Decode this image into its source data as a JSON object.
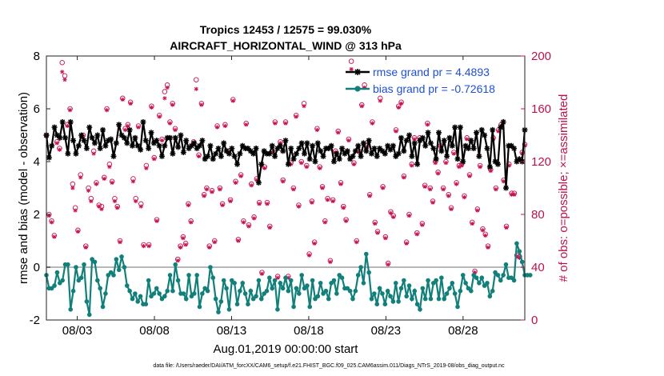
{
  "chart_data": {
    "type": "line",
    "title": "Tropics 12453 / 12575 = 99.030%",
    "subtitle": "AIRCRAFT_HORIZONTAL_WIND @ 313 hPa",
    "xlabel": "Aug.01,2019 00:00:00 start",
    "ylabel_left": "rmse and bias (model - observation)",
    "ylabel_right": "# of obs: o=possible; ×=assimilated",
    "footer": "data file: /Users/raeder/DAI/ATM_forcXX/CAM6_setup/f.e21.FHIST_BGC.f09_025.CAM6assim.011/Diags_NTrS_2019-08/obs_diag_output.nc",
    "x_ticks": [
      {
        "value": 3,
        "label": "08/03"
      },
      {
        "value": 8,
        "label": "08/08"
      },
      {
        "value": 13,
        "label": "08/13"
      },
      {
        "value": 18,
        "label": "08/18"
      },
      {
        "value": 23,
        "label": "08/23"
      },
      {
        "value": 28,
        "label": "08/28"
      }
    ],
    "y_left_ticks": [
      "-2",
      "0",
      "2",
      "4",
      "6",
      "8"
    ],
    "y_right_ticks": [
      "0",
      "40",
      "80",
      "120",
      "160",
      "200"
    ],
    "xlim": [
      1,
      32
    ],
    "ylim_left": [
      -2,
      8
    ],
    "ylim_right": [
      0,
      200
    ],
    "colors": {
      "rmse": "#000000",
      "bias": "#11807a",
      "obs": "#c8104e",
      "zero_line": "#b8b8b8",
      "legend_text": "#1f4fd6"
    },
    "series": [
      {
        "name": "rmse grand pr = 4.4893",
        "marker": "asterisk",
        "values": [
          5.0,
          4.15,
          4.6,
          5.3,
          5.0,
          4.9,
          5.5,
          4.9,
          4.3,
          5.5,
          4.8,
          4.3,
          4.6,
          5.0,
          4.8,
          4.5,
          5.3,
          4.9,
          4.7,
          5.0,
          4.5,
          5.2,
          4.6,
          4.8,
          4.85,
          4.2,
          4.7,
          5.4,
          5.0,
          4.9,
          4.7,
          5.2,
          4.6,
          4.9,
          4.6,
          4.45,
          5.5,
          4.8,
          4.5,
          5.1,
          4.7,
          4.8,
          4.6,
          4.2,
          4.6,
          4.9,
          4.9,
          4.3,
          4.9,
          4.55,
          5.0,
          4.35,
          4.8,
          4.5,
          4.6,
          4.7,
          4.5,
          4.6,
          4.8,
          4.1,
          4.2,
          4.6,
          4.1,
          4.3,
          4.5,
          4.2,
          4.7,
          4.4,
          4.3,
          4.5,
          4.2,
          3.9,
          4.3,
          4.6,
          4.5,
          4.5,
          4.4,
          4.3,
          4.5,
          3.2,
          3.9,
          4.4,
          4.3,
          4.3,
          4.6,
          4.2,
          4.5,
          4.6,
          4.4,
          4.8,
          3.9,
          4.5,
          4.1,
          4.3,
          4.5,
          4.7,
          4.3,
          4.7,
          4.1,
          4.6,
          4.0,
          4.7,
          4.4,
          4.2,
          4.5,
          4.5,
          4.6,
          4.0,
          4.3,
          4.1,
          4.5,
          4.3,
          4.4,
          4.1,
          4.2,
          4.4,
          4.6,
          4.2,
          4.7,
          4.4,
          4.8,
          4.3,
          4.5,
          4.2,
          4.5,
          4.4,
          4.3,
          4.6,
          4.45,
          4.6,
          4.2,
          4.3,
          4.9,
          4.4,
          4.8,
          5.0,
          4.2,
          4.7,
          3.9,
          4.8,
          4.9,
          4.6,
          5.1,
          4.7,
          4.5,
          4.1,
          5.1,
          4.4,
          4.8,
          4.2,
          4.9,
          4.6,
          5.3,
          4.1,
          5.3,
          4.0,
          4.6,
          4.5,
          4.8,
          4.5,
          5.1,
          4.2,
          5.2,
          5.0,
          4.5,
          3.8,
          5.2,
          4.0,
          3.9,
          5.3,
          5.5,
          3.0,
          4.6,
          4.6,
          4.5,
          4.0,
          4.1,
          4.0,
          5.2
        ]
      },
      {
        "name": "bias grand pr = -0.72618",
        "marker": "circle",
        "values": [
          -0.3,
          -0.8,
          -0.8,
          -0.7,
          -0.2,
          -0.6,
          -0.5,
          0.1,
          0.1,
          -1.6,
          -0.9,
          0.0,
          -0.5,
          -0.4,
          0.1,
          -1.3,
          -1.8,
          0.3,
          0.2,
          -0.5,
          -0.8,
          -1.5,
          -1.0,
          -0.3,
          -0.2,
          -0.3,
          0.3,
          -0.1,
          0.4,
          0.0,
          -0.7,
          -0.9,
          -1.2,
          -1.0,
          -1.3,
          -1.1,
          -1.4,
          -1.4,
          -0.5,
          -1.1,
          -1.0,
          -0.8,
          -1.0,
          -1.2,
          -1.1,
          -0.9,
          -0.3,
          -0.9,
          0.1,
          -0.5,
          -1.0,
          -1.0,
          -1.2,
          -0.3,
          -1.1,
          -1.0,
          -0.3,
          -1.5,
          -1.0,
          -0.8,
          -0.9,
          0.0,
          -0.4,
          -1.2,
          -1.7,
          -1.3,
          -0.5,
          -0.8,
          -1.6,
          -0.5,
          -0.6,
          -1.4,
          -0.9,
          -0.6,
          -1.0,
          -1.4,
          -0.9,
          -1.2,
          -1.1,
          -0.5,
          -1.2,
          -1.0,
          -0.9,
          -0.4,
          -0.8,
          -0.5,
          -1.6,
          -0.6,
          -0.8,
          -0.4,
          -0.9,
          -0.5,
          -1.5,
          -0.8,
          -1.0,
          -0.3,
          -0.8,
          -0.7,
          -1.5,
          -0.5,
          -1.2,
          -1.1,
          -0.6,
          -1.0,
          -0.9,
          -1.2,
          -0.6,
          -0.5,
          -1.0,
          -0.3,
          -0.4,
          -0.8,
          -0.8,
          -0.9,
          -1.2,
          -0.9,
          -0.3,
          0.0,
          -0.6,
          0.5,
          -0.2,
          -1.2,
          -1.0,
          -1.4,
          -0.8,
          -1.0,
          -1.4,
          -0.9,
          -1.1,
          -1.3,
          -0.6,
          -1.3,
          -0.8,
          -0.5,
          -1.1,
          -0.7,
          -1.2,
          -0.9,
          -1.4,
          -1.6,
          -0.8,
          -1.2,
          -0.5,
          -1.2,
          -0.6,
          -0.5,
          -1.2,
          -0.4,
          -1.2,
          -1.0,
          -0.8,
          -0.6,
          -1.0,
          -1.5,
          -0.9,
          -0.3,
          -0.6,
          -0.8,
          -0.9,
          -0.3,
          -0.4,
          -0.6,
          -0.4,
          -0.7,
          -0.6,
          -1.1,
          -0.9,
          -0.2,
          -0.3,
          -0.5,
          -0.3,
          0.1,
          -0.4,
          -0.4,
          -0.5,
          0.9,
          0.6,
          0.2,
          -0.3,
          -0.3,
          -0.3
        ]
      }
    ],
    "obs_possible": [
      140,
      80,
      75,
      64,
      135,
      130,
      195,
      185,
      148,
      160,
      103,
      85,
      68,
      110,
      140,
      56,
      100,
      92,
      128,
      104,
      87,
      86,
      108,
      160,
      118,
      105,
      92,
      86,
      60,
      168,
      145,
      148,
      165,
      107,
      92,
      147,
      88,
      57,
      117,
      57,
      162,
      123,
      76,
      155,
      137,
      173,
      178,
      150,
      164,
      145,
      46,
      56,
      63,
      58,
      88,
      75,
      135,
      182,
      125,
      164,
      95,
      100,
      56,
      98,
      60,
      147,
      100,
      88,
      148,
      128,
      91,
      167,
      105,
      61,
      110,
      75,
      149,
      72,
      103,
      78,
      107,
      89,
      36,
      116,
      89,
      71,
      128,
      150,
      33,
      135,
      106,
      150,
      33,
      119,
      100,
      155,
      87,
      120,
      164,
      117,
      50,
      90,
      59,
      145,
      116,
      101,
      75,
      92,
      45,
      91,
      128,
      143,
      104,
      86,
      76,
      137,
      196,
      119,
      60,
      128,
      163,
      178,
      132,
      95,
      150,
      74,
      67,
      168,
      101,
      63,
      43,
      82,
      79,
      144,
      162,
      165,
      109,
      59,
      80,
      118,
      138,
      66,
      138,
      73,
      102,
      149,
      100,
      90,
      120,
      112,
      132,
      100,
      120,
      95,
      85,
      127,
      104,
      117,
      118,
      94,
      138,
      110,
      74,
      37,
      84,
      117,
      69,
      65,
      56,
      114,
      138,
      100,
      144,
      148,
      106,
      71,
      118,
      96,
      96,
      49,
      48,
      127,
      133
    ],
    "obs_assimilated": [
      139,
      79,
      74,
      63,
      134,
      129,
      188,
      182,
      147,
      159,
      100,
      83,
      67,
      108,
      139,
      55,
      98,
      90,
      126,
      103,
      86,
      84,
      107,
      159,
      116,
      104,
      90,
      85,
      59,
      167,
      144,
      147,
      164,
      105,
      90,
      146,
      86,
      56,
      115,
      56,
      161,
      122,
      75,
      154,
      136,
      168,
      176,
      149,
      163,
      144,
      45,
      55,
      62,
      57,
      87,
      74,
      134,
      175,
      124,
      163,
      94,
      99,
      55,
      97,
      59,
      146,
      99,
      87,
      147,
      127,
      90,
      166,
      104,
      60,
      109,
      74,
      148,
      71,
      102,
      77,
      106,
      88,
      35,
      115,
      88,
      70,
      127,
      149,
      32,
      134,
      105,
      149,
      32,
      118,
      99,
      154,
      86,
      119,
      162,
      116,
      49,
      89,
      58,
      144,
      115,
      100,
      74,
      91,
      44,
      90,
      127,
      142,
      103,
      85,
      75,
      136,
      190,
      118,
      59,
      127,
      162,
      176,
      131,
      94,
      149,
      73,
      66,
      166,
      100,
      62,
      42,
      81,
      78,
      143,
      161,
      164,
      108,
      58,
      79,
      117,
      137,
      65,
      137,
      72,
      101,
      148,
      99,
      89,
      119,
      111,
      131,
      99,
      119,
      94,
      84,
      126,
      103,
      116,
      117,
      93,
      137,
      109,
      73,
      36,
      83,
      116,
      68,
      64,
      55,
      113,
      137,
      99,
      143,
      147,
      105,
      70,
      117,
      95,
      95,
      48,
      47,
      126,
      132
    ]
  }
}
